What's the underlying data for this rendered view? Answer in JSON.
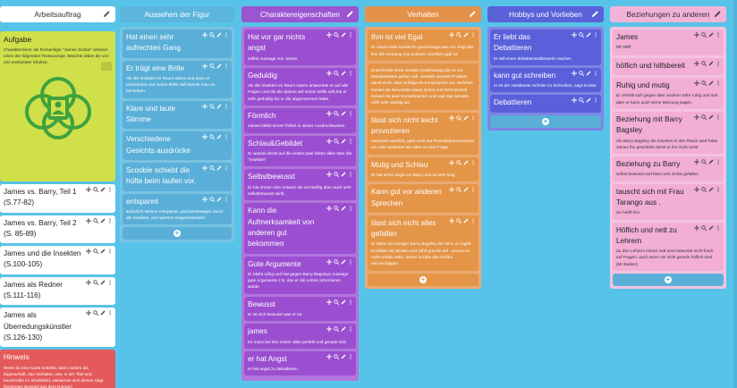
{
  "board": {
    "columns": [
      {
        "title": "Arbeitsauftrag",
        "cards": [
          {
            "title": "Aufgabe",
            "desc": "Charakterisiere die Romanfigur \"James Scobie\" anhand eines der folgenden Textauszüge. Beachte dabei die von uns erarbeitete Struktur."
          },
          {
            "title": "James vs. Barry, Teil 1 (S.77-82)",
            "desc": ""
          },
          {
            "title": "James vs. Barry, Teil 2 (S. 85-89)",
            "desc": ""
          },
          {
            "title": "James und die Insekten (S.100-105)",
            "desc": ""
          },
          {
            "title": "James als Redner (S.111-116)",
            "desc": ""
          },
          {
            "title": "James als Überredungskünstler (S.126-130)",
            "desc": ""
          },
          {
            "title": "Hinweis",
            "desc": "Wenn du eine Karte erstellst, dann notiere die Eigenschaft, das Verhalten usw. in der Titel und beschreibe im Inhaltsfeld, wie/woran sich dieses zeigt (konkretes Beispiel aus dem Roman)"
          }
        ]
      },
      {
        "title": "Aussehen der Figur",
        "cards": [
          {
            "title": "Hat einen sehr aufrechten Gang",
            "desc": ""
          },
          {
            "title": "Er trägt eine Brille",
            "desc": "Als die Insekten im Raum waren und darin er erschrieben auf seiner Brille saß könnte man es bemerken"
          },
          {
            "title": "Klare und laute Stimme",
            "desc": ""
          },
          {
            "title": "Verschiedene Gesichts ausdrücke",
            "desc": ""
          },
          {
            "title": "Scoobie schiebt die hüfte beim laufen vor.",
            "desc": ""
          },
          {
            "title": "entspannt",
            "desc": "äußerlich wirkt er entspannt, und keinerweges durch die Insekten, und spinnen eingeschüchtert."
          }
        ]
      },
      {
        "title": "Charaktereigenschaften",
        "cards": [
          {
            "title": "Hat vor gar nichts angst",
            "desc": "selbst Aussage von James"
          },
          {
            "title": "Geduldig",
            "desc": "Als die Insekten im Raum waren antwortete er auf alle Fragen und als die Spinne auf seiner Brille saß,hat er sehr geduldig bis er die abgenommen hatte."
          },
          {
            "title": "Förmlich",
            "desc": "James bleibt immer förlich in seiner Ausdrucksweise."
          },
          {
            "title": "Schlau&Gebildet",
            "desc": "Er wusste direkt auf die ersten paar blicke alles über die \"Insekten\""
          },
          {
            "title": "Selbstbewusst",
            "desc": "Er hat immer eine Antwort die vernünftig aber auch sehr selbstbewusst wirkt."
          },
          {
            "title": "Kann die Aufmerksamkeit von anderen gut bekommen",
            "desc": ""
          },
          {
            "title": "Gute Argumente",
            "desc": "Er bleibt ruhig und hat gegen Barry Bagsleys Aussage gute Argumente z.B. das er die Lehrer informieren würde"
          },
          {
            "title": "Bewusst",
            "desc": "Er ist sich bewusst was er tut"
          },
          {
            "title": "james",
            "desc": "Es muss bei ihm immer alles perfekt und gerade sein"
          },
          {
            "title": "er hat Angst",
            "desc": "er hat angst zu debattieren"
          }
        ]
      },
      {
        "title": "Verhalten",
        "cards": [
          {
            "title": "Ihm ist viel Egal",
            "desc": "Er macht viele komische gesichtsüge,was mir zeigt das ihm die meinung von anderen ziemlich egal ist."
          },
          {
            "title": "",
            "desc": "Entscheidet ohne Ismaels Zustimmung das er ins Debattierteam gehen soll. versteht Ismaels Problem damit nicht, aber schlägt ein Kompromiss vor. Welches Ismael die Nervosität etwas nimmt und Schmeichelt Ismael mit paar Komplimenten und sagt das Ismaels Hilfe sehr wichtig sei."
          },
          {
            "title": "lässt sich nicht leicht provozieren",
            "desc": "antwortet sachlich, geht nicht auf Provokationsversuche ein oder antwortet als wäre es eine Frage"
          },
          {
            "title": "Mutig und Schlau",
            "desc": "Er hat keine angst vor Barry und ist sehr klug"
          },
          {
            "title": "Kann gut vor anderen Sprechen",
            "desc": ""
          },
          {
            "title": "lässt sich nicht alles gefallen",
            "desc": "Er bietet als einziger Barry Bagsley die Stirn, er regelt Konflikte mit Worten und zählt gründe auf , warum es nicht schlau wäre James Scobie das Gehirn einzuschlagen."
          }
        ]
      },
      {
        "title": "Hobbys und Vorlieben",
        "cards": [
          {
            "title": "Er liebt das Debattieren",
            "desc": "Er will einen debattierwettbewerb machen"
          },
          {
            "title": "kann gut schreiben",
            "desc": "er ist der zweitbeste Schüler im Schreiben, sagt Scobie"
          },
          {
            "title": "Debattieren",
            "desc": ""
          }
        ]
      },
      {
        "title": "Beziehungen zu anderen",
        "cards": [
          {
            "title": "James",
            "desc": "ist nett"
          },
          {
            "title": "höflich und hilfsbereit",
            "desc": ""
          },
          {
            "title": "Ruhig und mutig",
            "desc": "Er verhält sich gegen über anderer Sehr ruhig und nett aber er kann auch seine Meinung sagen."
          },
          {
            "title": "Beziehung mit Barry Bagsley",
            "desc": "Als Barry Bagsley die Insekten in den Raum warf hatte James ihn geschützt damit er ihn nicht verät."
          },
          {
            "title": "Beziehung zu Barry",
            "desc": "selbst bewusst und lässt sich nichts gefallen"
          },
          {
            "title": "tauscht sich mit Frau Tarango aus .",
            "desc": "sie hielft ihm"
          },
          {
            "title": "Höflich und nett zu Lehrern",
            "desc": "Zu den Lehrern immer nett und Antwortet nicht frech auf Fragen, auch wenn sie nicht gerade höflich sind. (Mr Barker)"
          }
        ]
      }
    ]
  },
  "add_label": "+"
}
